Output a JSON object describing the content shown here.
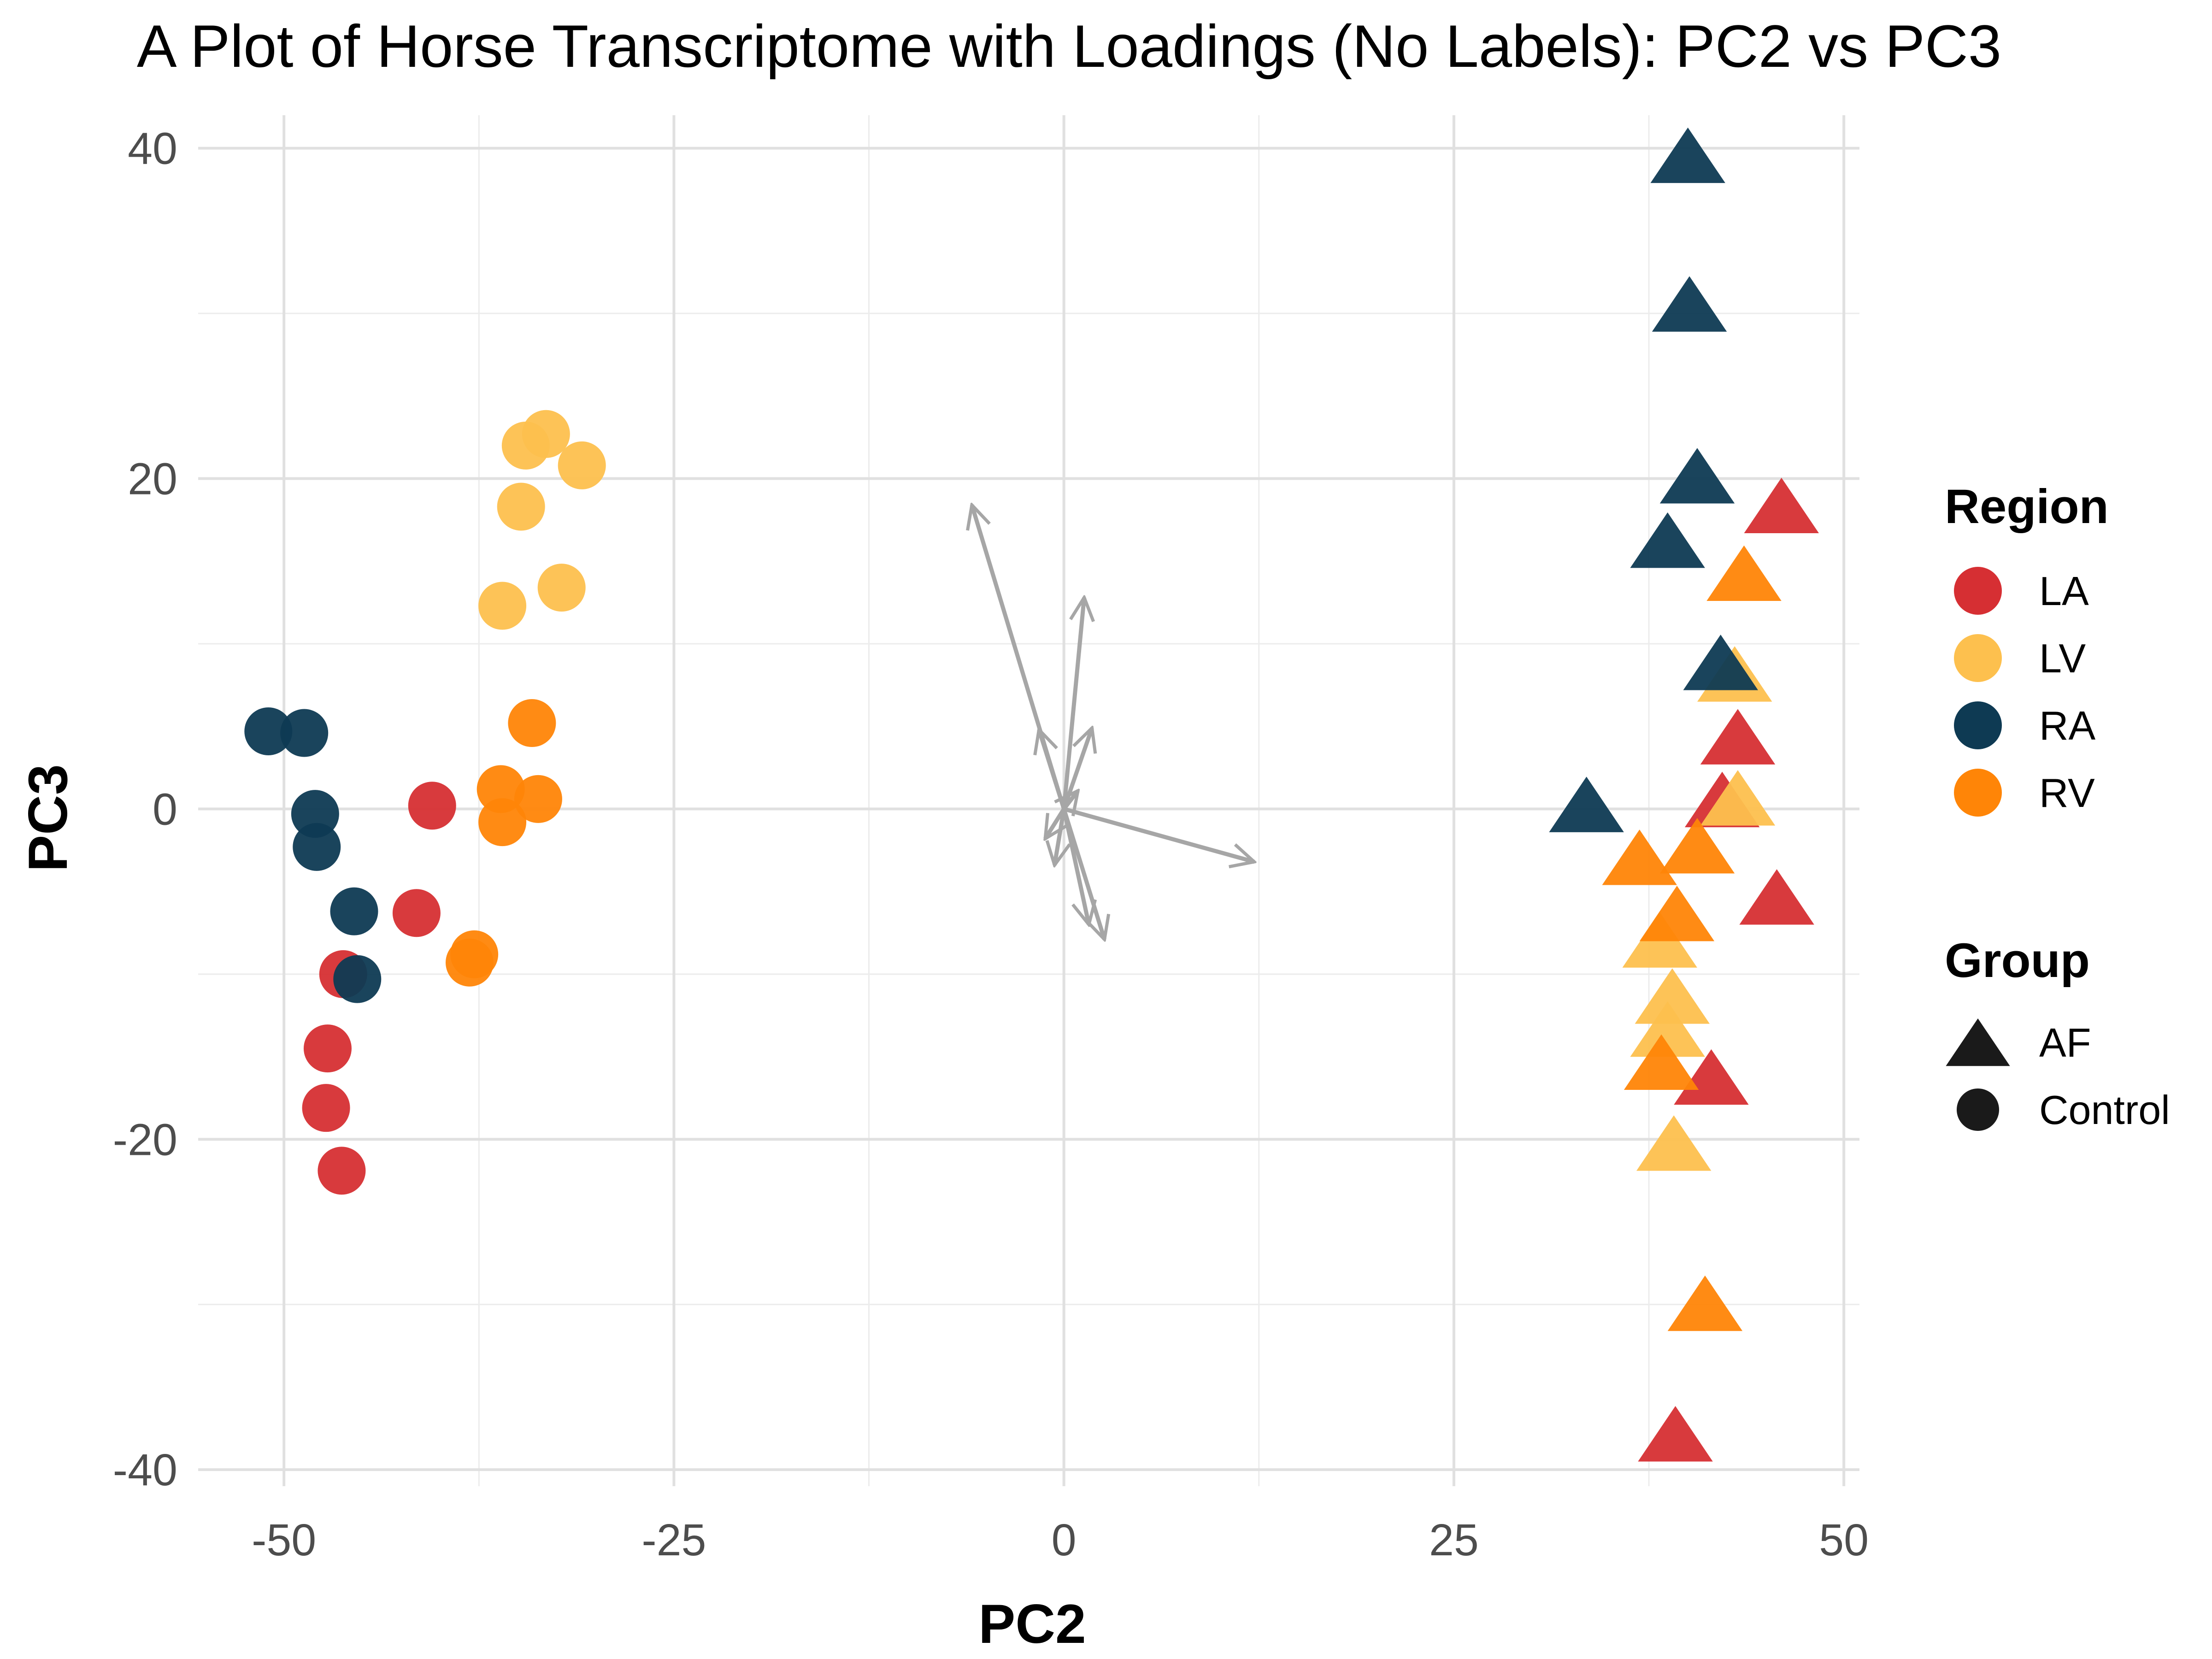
{
  "chart_data": {
    "type": "scatter",
    "title": "A Plot of Horse Transcriptome with Loadings (No Labels): PC2 vs PC3",
    "xlabel": "PC2",
    "ylabel": "PC3",
    "xlim": [
      -55.5,
      51
    ],
    "ylim": [
      -41,
      42
    ],
    "x_ticks": [
      -50,
      -25,
      0,
      25,
      50
    ],
    "y_ticks": [
      -40,
      -20,
      0,
      20,
      40
    ],
    "x_tick_labels": [
      "-50",
      "-25",
      "0",
      "25",
      "50"
    ],
    "y_tick_labels": [
      "-40",
      "-20",
      "0",
      "20",
      "40"
    ],
    "grid": true,
    "region_legend": {
      "title": "Region",
      "items": [
        {
          "label": "LA",
          "color": "#D62F33"
        },
        {
          "label": "LV",
          "color": "#FDC04E"
        },
        {
          "label": "RA",
          "color": "#0E3A53"
        },
        {
          "label": "RV",
          "color": "#FF8507"
        }
      ]
    },
    "group_legend": {
      "title": "Group",
      "items": [
        {
          "label": "AF",
          "shape": "triangle"
        },
        {
          "label": "Control",
          "shape": "circle"
        }
      ]
    },
    "points": [
      {
        "x": -40.5,
        "y": 0.2,
        "region": "LA",
        "group": "Control"
      },
      {
        "x": -41.5,
        "y": -6.3,
        "region": "LA",
        "group": "Control"
      },
      {
        "x": -46.2,
        "y": -10.0,
        "region": "LA",
        "group": "Control"
      },
      {
        "x": -47.2,
        "y": -14.5,
        "region": "LA",
        "group": "Control"
      },
      {
        "x": -47.3,
        "y": -18.1,
        "region": "LA",
        "group": "Control"
      },
      {
        "x": -46.3,
        "y": -21.9,
        "region": "LA",
        "group": "Control"
      },
      {
        "x": -33.2,
        "y": 22.7,
        "region": "LV",
        "group": "Control"
      },
      {
        "x": -34.5,
        "y": 22.0,
        "region": "LV",
        "group": "Control"
      },
      {
        "x": -30.9,
        "y": 20.8,
        "region": "LV",
        "group": "Control"
      },
      {
        "x": -34.8,
        "y": 18.3,
        "region": "LV",
        "group": "Control"
      },
      {
        "x": -32.2,
        "y": 13.4,
        "region": "LV",
        "group": "Control"
      },
      {
        "x": -36.0,
        "y": 12.3,
        "region": "LV",
        "group": "Control"
      },
      {
        "x": -51.0,
        "y": 4.7,
        "region": "RA",
        "group": "Control"
      },
      {
        "x": -48.7,
        "y": 4.6,
        "region": "RA",
        "group": "Control"
      },
      {
        "x": -48.0,
        "y": -0.3,
        "region": "RA",
        "group": "Control"
      },
      {
        "x": -47.9,
        "y": -2.3,
        "region": "RA",
        "group": "Control"
      },
      {
        "x": -45.5,
        "y": -6.2,
        "region": "RA",
        "group": "Control"
      },
      {
        "x": -45.3,
        "y": -10.3,
        "region": "RA",
        "group": "Control"
      },
      {
        "x": -34.1,
        "y": 5.2,
        "region": "RV",
        "group": "Control"
      },
      {
        "x": -36.1,
        "y": 1.2,
        "region": "RV",
        "group": "Control"
      },
      {
        "x": -33.7,
        "y": 0.6,
        "region": "RV",
        "group": "Control"
      },
      {
        "x": -36.0,
        "y": -0.8,
        "region": "RV",
        "group": "Control"
      },
      {
        "x": -37.8,
        "y": -8.8,
        "region": "RV",
        "group": "Control"
      },
      {
        "x": -38.1,
        "y": -9.3,
        "region": "RV",
        "group": "Control"
      },
      {
        "x": 46.0,
        "y": 18.1,
        "region": "LA",
        "group": "AF"
      },
      {
        "x": 43.2,
        "y": 4.1,
        "region": "LA",
        "group": "AF"
      },
      {
        "x": 42.2,
        "y": 0.3,
        "region": "LA",
        "group": "AF"
      },
      {
        "x": 45.7,
        "y": -5.6,
        "region": "LA",
        "group": "AF"
      },
      {
        "x": 41.5,
        "y": -16.5,
        "region": "LA",
        "group": "AF"
      },
      {
        "x": 39.2,
        "y": -38.1,
        "region": "LA",
        "group": "AF"
      },
      {
        "x": 43.0,
        "y": 7.9,
        "region": "LV",
        "group": "AF"
      },
      {
        "x": 43.2,
        "y": 0.4,
        "region": "LV",
        "group": "AF"
      },
      {
        "x": 38.2,
        "y": -8.2,
        "region": "LV",
        "group": "AF"
      },
      {
        "x": 39.0,
        "y": -11.6,
        "region": "LV",
        "group": "AF"
      },
      {
        "x": 38.7,
        "y": -13.6,
        "region": "LV",
        "group": "AF"
      },
      {
        "x": 39.1,
        "y": -20.5,
        "region": "LV",
        "group": "AF"
      },
      {
        "x": 40.0,
        "y": 39.3,
        "region": "RA",
        "group": "AF"
      },
      {
        "x": 40.1,
        "y": 30.3,
        "region": "RA",
        "group": "AF"
      },
      {
        "x": 40.6,
        "y": 19.9,
        "region": "RA",
        "group": "AF"
      },
      {
        "x": 38.7,
        "y": 16.0,
        "region": "RA",
        "group": "AF"
      },
      {
        "x": 42.1,
        "y": 8.6,
        "region": "RA",
        "group": "AF"
      },
      {
        "x": 33.5,
        "y": 0.0,
        "region": "RA",
        "group": "AF"
      },
      {
        "x": 43.6,
        "y": 14.0,
        "region": "RV",
        "group": "AF"
      },
      {
        "x": 40.6,
        "y": -2.5,
        "region": "RV",
        "group": "AF"
      },
      {
        "x": 36.9,
        "y": -3.2,
        "region": "RV",
        "group": "AF"
      },
      {
        "x": 39.3,
        "y": -6.6,
        "region": "RV",
        "group": "AF"
      },
      {
        "x": 38.3,
        "y": -15.6,
        "region": "RV",
        "group": "AF"
      },
      {
        "x": 41.1,
        "y": -30.2,
        "region": "RV",
        "group": "AF"
      }
    ],
    "loadings": {
      "color": "#A6A6A6",
      "vectors": [
        {
          "x": -5.9,
          "y": 18.4
        },
        {
          "x": 1.3,
          "y": 12.8
        },
        {
          "x": 12.2,
          "y": -3.2
        },
        {
          "x": 1.8,
          "y": 4.9
        },
        {
          "x": -1.6,
          "y": 4.8
        },
        {
          "x": 2.6,
          "y": -7.9
        },
        {
          "x": 1.6,
          "y": -7.0
        },
        {
          "x": -1.2,
          "y": -1.8
        },
        {
          "x": -0.6,
          "y": -3.4
        },
        {
          "x": 0.9,
          "y": 1.1
        }
      ]
    }
  }
}
